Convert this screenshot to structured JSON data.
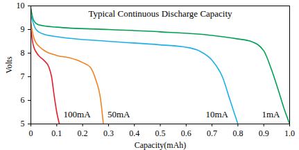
{
  "chart_data": {
    "type": "line",
    "title": "Typical Continuous Discharge Capacity",
    "x_label": "Capacity(mAh)",
    "y_label": "Volts",
    "xlim": [
      0,
      1
    ],
    "ylim": [
      5,
      10
    ],
    "xticks": [
      0,
      0.1,
      0.2,
      0.3,
      0.4,
      0.5,
      0.6,
      0.7,
      0.8,
      0.9,
      {
        "value": 1,
        "label": "1.0"
      }
    ],
    "yticks": [
      5,
      6,
      7,
      8,
      9,
      10
    ],
    "grid": false,
    "series": [
      {
        "name": "100mA",
        "color": "#e0202a",
        "x": [
          0,
          0.01,
          0.03,
          0.05,
          0.07,
          0.08,
          0.09,
          0.1,
          0.11
        ],
        "values": [
          9.0,
          8.3,
          7.9,
          7.7,
          7.4,
          7.0,
          6.2,
          5.5,
          5.0
        ]
      },
      {
        "name": "50mA",
        "color": "#f08020",
        "x": [
          0,
          0.01,
          0.03,
          0.1,
          0.15,
          0.2,
          0.23,
          0.25,
          0.27,
          0.28
        ],
        "values": [
          9.3,
          8.7,
          8.3,
          7.9,
          7.8,
          7.6,
          7.4,
          6.9,
          6.0,
          5.0
        ]
      },
      {
        "name": "10mA",
        "color": "#1ab0e8",
        "x": [
          0,
          0.02,
          0.05,
          0.1,
          0.3,
          0.5,
          0.6,
          0.65,
          0.7,
          0.74,
          0.77,
          0.8
        ],
        "values": [
          9.6,
          9.0,
          8.8,
          8.7,
          8.5,
          8.35,
          8.25,
          8.1,
          7.7,
          7.0,
          6.0,
          5.0
        ]
      },
      {
        "name": "1mA",
        "color": "#00a050",
        "x": [
          0,
          0.01,
          0.03,
          0.1,
          0.3,
          0.5,
          0.7,
          0.8,
          0.85,
          0.9,
          0.93,
          0.96,
          0.98,
          1.0
        ],
        "values": [
          9.9,
          9.4,
          9.2,
          9.1,
          9.0,
          8.9,
          8.75,
          8.6,
          8.5,
          8.1,
          7.3,
          6.3,
          5.6,
          5.0
        ]
      }
    ]
  }
}
